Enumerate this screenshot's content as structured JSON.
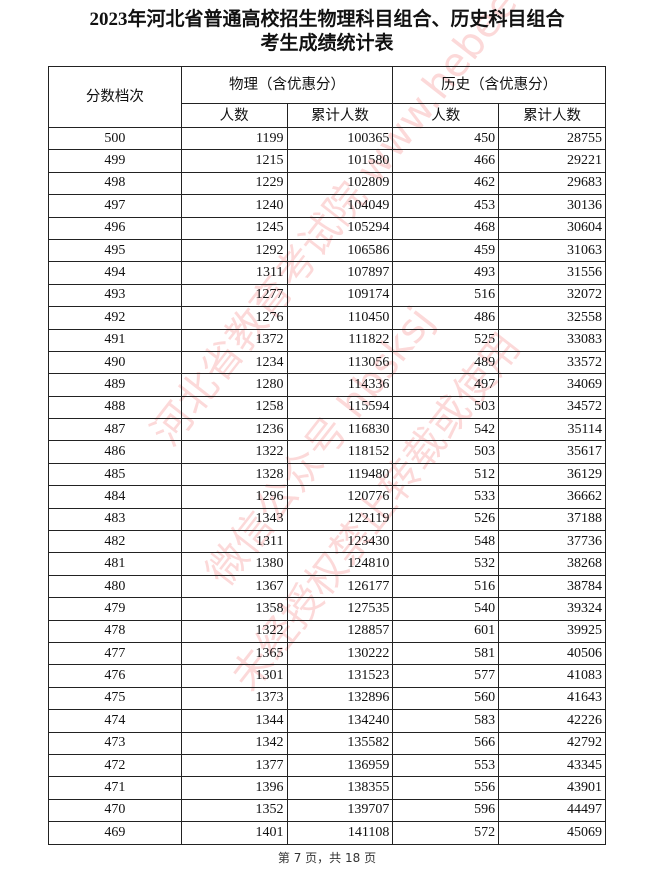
{
  "title": {
    "line1": "2023年河北省普通高校招生物理科目组合、历史科目组合",
    "line2": "考生成绩统计表"
  },
  "table": {
    "score_header": "分数档次",
    "physics_header": "物理（含优惠分）",
    "history_header": "历史（含优惠分）",
    "count_header": "人数",
    "cumulative_header": "累计人数",
    "rows": [
      [
        "500",
        "1199",
        "100365",
        "450",
        "28755"
      ],
      [
        "499",
        "1215",
        "101580",
        "466",
        "29221"
      ],
      [
        "498",
        "1229",
        "102809",
        "462",
        "29683"
      ],
      [
        "497",
        "1240",
        "104049",
        "453",
        "30136"
      ],
      [
        "496",
        "1245",
        "105294",
        "468",
        "30604"
      ],
      [
        "495",
        "1292",
        "106586",
        "459",
        "31063"
      ],
      [
        "494",
        "1311",
        "107897",
        "493",
        "31556"
      ],
      [
        "493",
        "1277",
        "109174",
        "516",
        "32072"
      ],
      [
        "492",
        "1276",
        "110450",
        "486",
        "32558"
      ],
      [
        "491",
        "1372",
        "111822",
        "525",
        "33083"
      ],
      [
        "490",
        "1234",
        "113056",
        "489",
        "33572"
      ],
      [
        "489",
        "1280",
        "114336",
        "497",
        "34069"
      ],
      [
        "488",
        "1258",
        "115594",
        "503",
        "34572"
      ],
      [
        "487",
        "1236",
        "116830",
        "542",
        "35114"
      ],
      [
        "486",
        "1322",
        "118152",
        "503",
        "35617"
      ],
      [
        "485",
        "1328",
        "119480",
        "512",
        "36129"
      ],
      [
        "484",
        "1296",
        "120776",
        "533",
        "36662"
      ],
      [
        "483",
        "1343",
        "122119",
        "526",
        "37188"
      ],
      [
        "482",
        "1311",
        "123430",
        "548",
        "37736"
      ],
      [
        "481",
        "1380",
        "124810",
        "532",
        "38268"
      ],
      [
        "480",
        "1367",
        "126177",
        "516",
        "38784"
      ],
      [
        "479",
        "1358",
        "127535",
        "540",
        "39324"
      ],
      [
        "478",
        "1322",
        "128857",
        "601",
        "39925"
      ],
      [
        "477",
        "1365",
        "130222",
        "581",
        "40506"
      ],
      [
        "476",
        "1301",
        "131523",
        "577",
        "41083"
      ],
      [
        "475",
        "1373",
        "132896",
        "560",
        "41643"
      ],
      [
        "474",
        "1344",
        "134240",
        "583",
        "42226"
      ],
      [
        "473",
        "1342",
        "135582",
        "566",
        "42792"
      ],
      [
        "472",
        "1377",
        "136959",
        "553",
        "43345"
      ],
      [
        "471",
        "1396",
        "138355",
        "556",
        "43901"
      ],
      [
        "470",
        "1352",
        "139707",
        "596",
        "44497"
      ],
      [
        "469",
        "1401",
        "141108",
        "572",
        "45069"
      ]
    ]
  },
  "footer": "第 7 页，共 18 页",
  "watermark": {
    "line1": "河北省教育考试院 www.hebeea.edu.cn",
    "line2": "微信公众号 hbsksj",
    "line3": "未经授权禁止转载或使用",
    "color": "#f05050"
  }
}
